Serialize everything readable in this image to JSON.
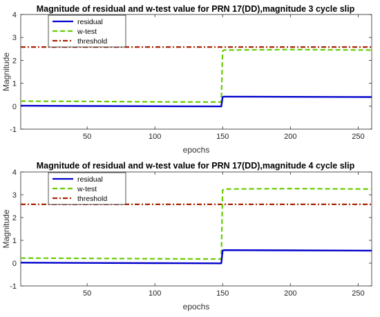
{
  "chart_data": [
    {
      "type": "line",
      "title": "Magnitude of residual and w-test value for PRN 17(DD),magnitude 3 cycle slip",
      "xlabel": "epochs",
      "ylabel": "Magnitude",
      "xlim": [
        1,
        260
      ],
      "ylim": [
        -1,
        4
      ],
      "xticks": [
        50,
        100,
        150,
        200,
        250
      ],
      "yticks": [
        -1,
        0,
        1,
        2,
        3,
        4
      ],
      "grid": false,
      "legend_position": "top-left",
      "series": [
        {
          "name": "residual",
          "color": "#0000cc",
          "style": "solid",
          "x": [
            1,
            50,
            100,
            149,
            150,
            151,
            200,
            260
          ],
          "y": [
            0.02,
            0.01,
            0.0,
            -0.01,
            0.4,
            0.42,
            0.41,
            0.4
          ]
        },
        {
          "name": "w-test",
          "color": "#66cc00",
          "style": "dashed",
          "x": [
            1,
            50,
            100,
            149,
            150,
            151,
            200,
            260
          ],
          "y": [
            0.22,
            0.21,
            0.19,
            0.18,
            2.4,
            2.45,
            2.47,
            2.45
          ]
        },
        {
          "name": "threshold",
          "color": "#aa2200",
          "style": "dashdot",
          "x": [
            1,
            260
          ],
          "y": [
            2.58,
            2.58
          ]
        }
      ]
    },
    {
      "type": "line",
      "title": "Magnitude of residual and w-test value for PRN 17(DD),magnitude 4 cycle slip",
      "xlabel": "epochs",
      "ylabel": "Magnitude",
      "xlim": [
        1,
        260
      ],
      "ylim": [
        -1,
        4
      ],
      "xticks": [
        50,
        100,
        150,
        200,
        250
      ],
      "yticks": [
        -1,
        0,
        1,
        2,
        3,
        4
      ],
      "grid": false,
      "legend_position": "top-left",
      "series": [
        {
          "name": "residual",
          "color": "#0000cc",
          "style": "solid",
          "x": [
            1,
            50,
            100,
            149,
            150,
            151,
            200,
            260
          ],
          "y": [
            0.02,
            0.01,
            0.0,
            -0.01,
            0.55,
            0.57,
            0.56,
            0.55
          ]
        },
        {
          "name": "w-test",
          "color": "#66cc00",
          "style": "dashed",
          "x": [
            1,
            50,
            100,
            149,
            150,
            151,
            200,
            260
          ],
          "y": [
            0.22,
            0.21,
            0.19,
            0.18,
            3.2,
            3.25,
            3.27,
            3.25
          ]
        },
        {
          "name": "threshold",
          "color": "#aa2200",
          "style": "dashdot",
          "x": [
            1,
            260
          ],
          "y": [
            2.58,
            2.58
          ]
        }
      ]
    }
  ]
}
